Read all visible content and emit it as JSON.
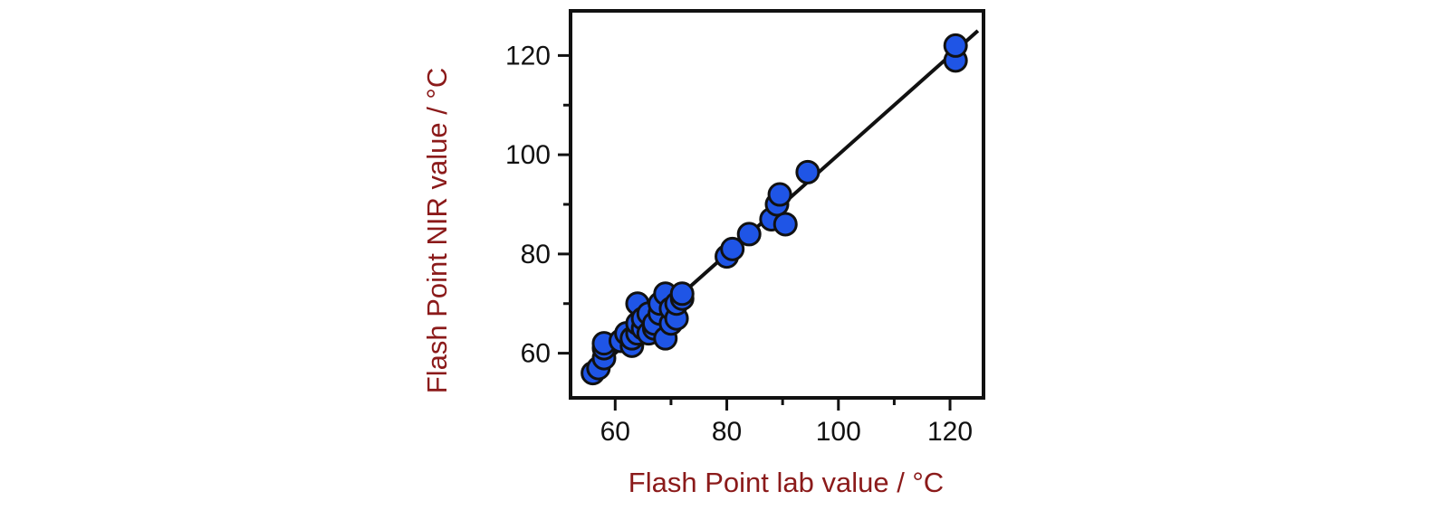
{
  "chart_data": {
    "type": "scatter",
    "title": "",
    "xlabel": "Flash Point lab value / °C",
    "ylabel": "Flash Point NIR value / °C",
    "xlim": [
      52,
      126
    ],
    "ylim": [
      51,
      129
    ],
    "xticks": [
      60,
      80,
      100,
      120
    ],
    "yticks": [
      60,
      80,
      100,
      120
    ],
    "x_tick_labels": [
      "60",
      "80",
      "100",
      "120"
    ],
    "y_tick_labels": [
      "60",
      "80",
      "100",
      "120"
    ],
    "grid": false,
    "legend": "none",
    "point_color": "#1f55e6",
    "line_color": "#111111",
    "fit_line": {
      "x": [
        56,
        125
      ],
      "y": [
        56,
        125
      ]
    },
    "series": [
      {
        "points": [
          [
            56,
            56
          ],
          [
            57,
            57
          ],
          [
            58,
            59
          ],
          [
            58,
            61
          ],
          [
            58,
            62
          ],
          [
            61,
            62.5
          ],
          [
            62,
            64
          ],
          [
            63,
            61.5
          ],
          [
            63,
            63
          ],
          [
            64,
            64
          ],
          [
            64,
            66
          ],
          [
            64,
            70
          ],
          [
            65,
            65
          ],
          [
            65,
            67
          ],
          [
            66,
            64
          ],
          [
            66,
            68
          ],
          [
            67,
            65
          ],
          [
            67,
            66
          ],
          [
            68,
            68
          ],
          [
            68,
            70
          ],
          [
            69,
            63
          ],
          [
            69,
            72
          ],
          [
            70,
            66
          ],
          [
            70,
            69
          ],
          [
            71,
            67
          ],
          [
            71,
            70
          ],
          [
            72,
            71
          ],
          [
            72,
            72
          ],
          [
            80,
            79.5
          ],
          [
            81,
            81
          ],
          [
            84,
            84
          ],
          [
            88,
            87
          ],
          [
            89,
            90
          ],
          [
            89.5,
            92
          ],
          [
            90.5,
            86
          ],
          [
            94.5,
            96.5
          ],
          [
            121,
            119
          ],
          [
            121,
            122
          ]
        ]
      }
    ]
  }
}
